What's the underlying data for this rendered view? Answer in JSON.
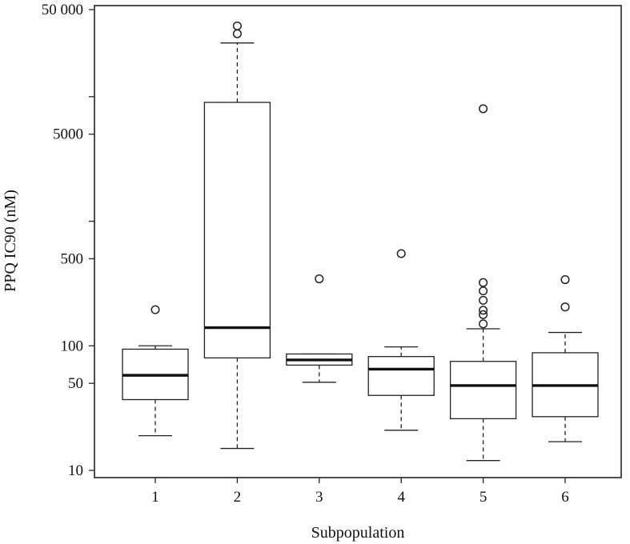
{
  "chart_data": {
    "type": "boxplot",
    "xlabel": "Subpopulation",
    "ylabel": "PPQ IC90 (nM)",
    "y_scale": "log",
    "ylim": [
      10,
      50000
    ],
    "y_ticks": [
      {
        "value": 10,
        "label": "10"
      },
      {
        "value": 50,
        "label": "50"
      },
      {
        "value": 100,
        "label": "100"
      },
      {
        "value": 500,
        "label": "500"
      },
      {
        "value": 1000,
        "label": ""
      },
      {
        "value": 5000,
        "label": "5000"
      },
      {
        "value": 10000,
        "label": ""
      },
      {
        "value": 50000,
        "label": "50 000"
      }
    ],
    "categories": [
      "1",
      "2",
      "3",
      "4",
      "5",
      "6"
    ],
    "boxes": [
      {
        "category": "1",
        "whisker_low": 19,
        "q1": 37,
        "median": 58,
        "q3": 94,
        "whisker_high": 100,
        "outliers": [
          195
        ]
      },
      {
        "category": "2",
        "whisker_low": 15,
        "q1": 80,
        "median": 140,
        "q3": 9000,
        "whisker_high": 27000,
        "outliers": [
          32000,
          37000
        ]
      },
      {
        "category": "3",
        "whisker_low": 51,
        "q1": 70,
        "median": 77,
        "q3": 86,
        "whisker_high": 86,
        "outliers": [
          345
        ]
      },
      {
        "category": "4",
        "whisker_low": 21,
        "q1": 40,
        "median": 65,
        "q3": 82,
        "whisker_high": 98,
        "outliers": [
          550
        ]
      },
      {
        "category": "5",
        "whisker_low": 12,
        "q1": 26,
        "median": 48,
        "q3": 75,
        "whisker_high": 137,
        "outliers": [
          150,
          178,
          193,
          232,
          276,
          322,
          8000
        ]
      },
      {
        "category": "6",
        "whisker_low": 17,
        "q1": 27,
        "median": 48,
        "q3": 88,
        "whisker_high": 128,
        "outliers": [
          205,
          340
        ]
      }
    ],
    "grid": false,
    "legend": "none"
  }
}
